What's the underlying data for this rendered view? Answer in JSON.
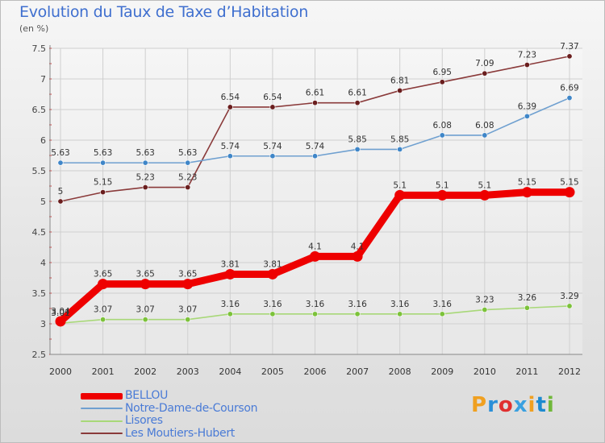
{
  "header": {
    "title": "Evolution du Taux de Taxe d’Habitation",
    "subtitle": "(en %)"
  },
  "logo": {
    "text": "Proxiti",
    "letter_colors": [
      "#f0a020",
      "#2a8fd8",
      "#e03030",
      "#3aa0e0",
      "#f0a020",
      "#1c8ad0",
      "#70b83a"
    ]
  },
  "chart_data": {
    "type": "line",
    "title": "Evolution du Taux de Taxe d’Habitation",
    "ylabel": "(en %)",
    "xlabel": "",
    "x": [
      "2000",
      "2001",
      "2002",
      "2003",
      "2004",
      "2005",
      "2006",
      "2007",
      "2008",
      "2009",
      "2010",
      "2011",
      "2012"
    ],
    "ylim": [
      2.5,
      7.5
    ],
    "yticks": [
      "2.5",
      "3",
      "3.5",
      "4",
      "4.5",
      "5",
      "5.5",
      "6",
      "6.5",
      "7",
      "7.5"
    ],
    "grid": true,
    "legend_position": "bottom-left",
    "series": [
      {
        "name": "BELLOU",
        "color": "#ee0000",
        "marker": "#ee0000",
        "values": [
          3.04,
          3.65,
          3.65,
          3.65,
          3.81,
          3.81,
          4.1,
          4.1,
          5.1,
          5.1,
          5.1,
          5.15,
          5.15
        ],
        "labels": [
          "3.04",
          "3.65",
          "3.65",
          "3.65",
          "3.81",
          "3.81",
          "4.1",
          "4.1",
          "5.1",
          "5.1",
          "5.1",
          "5.15",
          "5.15"
        ]
      },
      {
        "name": "Notre-Dame-de-Courson",
        "color": "#6fa0d0",
        "marker": "#3f86c8",
        "values": [
          5.63,
          5.63,
          5.63,
          5.63,
          5.74,
          5.74,
          5.74,
          5.85,
          5.85,
          6.08,
          6.08,
          6.39,
          6.69
        ],
        "labels": [
          "5.63",
          "5.63",
          "5.63",
          "5.63",
          "5.74",
          "5.74",
          "5.74",
          "5.85",
          "5.85",
          "6.08",
          "6.08",
          "6.39",
          "6.69"
        ]
      },
      {
        "name": "Lisores",
        "color": "#a8d878",
        "marker": "#7cc23a",
        "values": [
          3.01,
          3.07,
          3.07,
          3.07,
          3.16,
          3.16,
          3.16,
          3.16,
          3.16,
          3.16,
          3.23,
          3.26,
          3.29
        ],
        "labels": [
          "3.01",
          "3.07",
          "3.07",
          "3.07",
          "3.16",
          "3.16",
          "3.16",
          "3.16",
          "3.16",
          "3.16",
          "3.23",
          "3.26",
          "3.29"
        ]
      },
      {
        "name": "Les Moutiers-Hubert",
        "color": "#8a3a3a",
        "marker": "#6a1e1e",
        "values": [
          5,
          5.15,
          5.23,
          5.23,
          6.54,
          6.54,
          6.61,
          6.61,
          6.81,
          6.95,
          7.09,
          7.23,
          7.37
        ],
        "labels": [
          "5",
          "5.15",
          "5.23",
          "5.23",
          "6.54",
          "6.54",
          "6.61",
          "6.61",
          "6.81",
          "6.95",
          "7.09",
          "7.23",
          "7.37"
        ]
      }
    ]
  }
}
